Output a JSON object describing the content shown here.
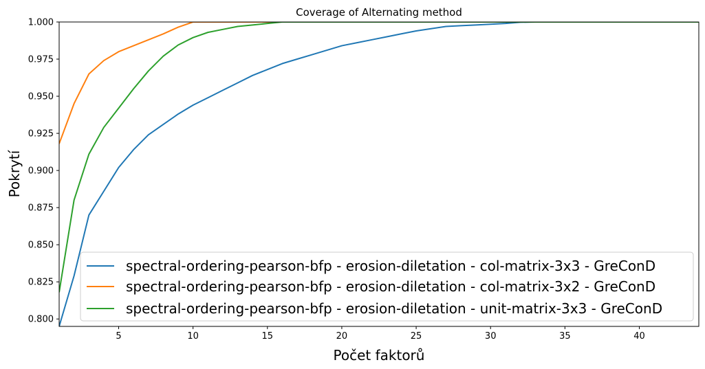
{
  "chart_data": {
    "type": "line",
    "title": "Coverage of Alternating method",
    "xlabel": "Počet faktorů",
    "ylabel": "Pokrytí",
    "xlim": [
      1,
      44
    ],
    "ylim": [
      0.795,
      1.0
    ],
    "xticks": [
      5,
      10,
      15,
      20,
      25,
      30,
      35,
      40
    ],
    "yticks": [
      0.8,
      0.825,
      0.85,
      0.875,
      0.9,
      0.925,
      0.95,
      0.975,
      1.0
    ],
    "ytick_labels": [
      "0.800",
      "0.825",
      "0.850",
      "0.875",
      "0.900",
      "0.925",
      "0.950",
      "0.975",
      "1.000"
    ],
    "grid": false,
    "legend_position": "lower-right",
    "series": [
      {
        "name": "spectral-ordering-pearson-bfp - erosion-diletation - col-matrix-3x3 - GreConD",
        "color": "#1f77b4",
        "x": [
          1,
          2,
          3,
          4,
          5,
          6,
          7,
          8,
          9,
          10,
          11,
          12,
          13,
          14,
          15,
          16,
          17,
          18,
          19,
          20,
          21,
          22,
          23,
          24,
          25,
          26,
          27,
          28,
          29,
          30,
          31,
          32,
          33,
          34,
          35,
          36,
          37,
          38,
          39,
          40,
          41,
          42,
          43,
          44
        ],
        "y": [
          0.795,
          0.829,
          0.87,
          0.886,
          0.902,
          0.914,
          0.924,
          0.931,
          0.938,
          0.944,
          0.949,
          0.954,
          0.959,
          0.964,
          0.968,
          0.972,
          0.975,
          0.978,
          0.981,
          0.984,
          0.986,
          0.988,
          0.99,
          0.992,
          0.994,
          0.9955,
          0.997,
          0.9975,
          0.998,
          0.9985,
          0.999,
          0.9998,
          1.0,
          1.0,
          1.0,
          1.0,
          1.0,
          1.0,
          1.0,
          1.0,
          1.0,
          1.0,
          1.0,
          1.0
        ]
      },
      {
        "name": "spectral-ordering-pearson-bfp - erosion-diletation - col-matrix-3x2 - GreConD",
        "color": "#ff7f0e",
        "x": [
          1,
          2,
          3,
          4,
          5,
          6,
          7,
          8,
          9,
          10,
          11,
          12,
          13,
          14,
          15,
          16,
          17,
          18,
          19,
          20,
          21,
          22,
          23,
          24,
          25,
          26,
          27,
          28,
          29,
          30,
          31,
          32,
          33,
          34,
          35,
          36,
          37,
          38,
          39,
          40,
          41,
          42,
          43,
          44
        ],
        "y": [
          0.918,
          0.945,
          0.965,
          0.974,
          0.98,
          0.984,
          0.988,
          0.992,
          0.9965,
          1.0,
          1.0,
          1.0,
          1.0,
          1.0,
          1.0,
          1.0,
          1.0,
          1.0,
          1.0,
          1.0,
          1.0,
          1.0,
          1.0,
          1.0,
          1.0,
          1.0,
          1.0,
          1.0,
          1.0,
          1.0,
          1.0,
          1.0,
          1.0,
          1.0,
          1.0,
          1.0,
          1.0,
          1.0,
          1.0,
          1.0,
          1.0,
          1.0,
          1.0,
          1.0
        ]
      },
      {
        "name": "spectral-ordering-pearson-bfp - erosion-diletation - unit-matrix-3x3 - GreConD",
        "color": "#2ca02c",
        "x": [
          1,
          2,
          3,
          4,
          5,
          6,
          7,
          8,
          9,
          10,
          11,
          12,
          13,
          14,
          15,
          16,
          17,
          18,
          19,
          20,
          21,
          22,
          23,
          24,
          25,
          26,
          27,
          28,
          29,
          30,
          31,
          32,
          33,
          34,
          35,
          36,
          37,
          38,
          39,
          40,
          41,
          42,
          43,
          44
        ],
        "y": [
          0.818,
          0.88,
          0.911,
          0.929,
          0.942,
          0.955,
          0.967,
          0.977,
          0.9845,
          0.9895,
          0.993,
          0.995,
          0.997,
          0.998,
          0.999,
          1.0,
          1.0,
          1.0,
          1.0,
          1.0,
          1.0,
          1.0,
          1.0,
          1.0,
          1.0,
          1.0,
          1.0,
          1.0,
          1.0,
          1.0,
          1.0,
          1.0,
          1.0,
          1.0,
          1.0,
          1.0,
          1.0,
          1.0,
          1.0,
          1.0,
          1.0,
          1.0,
          1.0,
          1.0
        ]
      }
    ]
  }
}
